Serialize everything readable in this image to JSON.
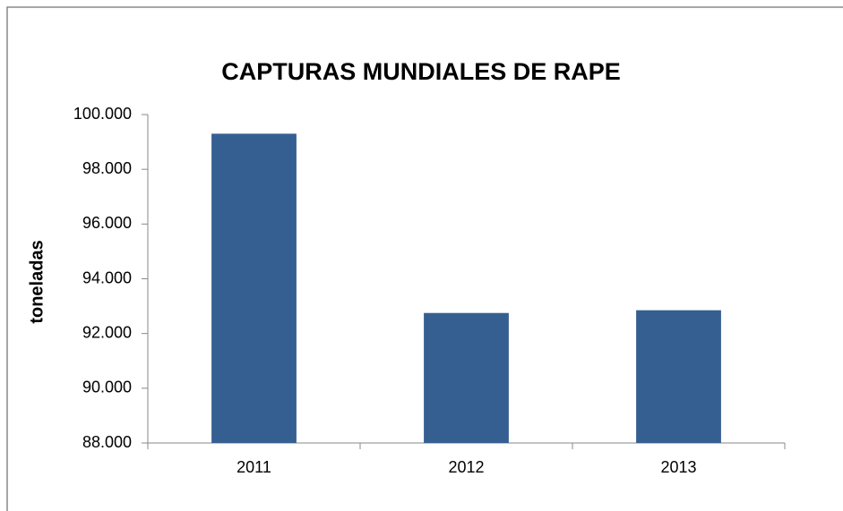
{
  "chart_data": {
    "type": "bar",
    "title": "CAPTURAS MUNDIALES DE RAPE",
    "y_label": "toneladas",
    "categories": [
      "2011",
      "2012",
      "2013"
    ],
    "values": [
      99300,
      92750,
      92850
    ],
    "color": "#365f91",
    "ylim": [
      88000,
      100000
    ],
    "yticks": [
      {
        "value": 88000,
        "label": "88.000"
      },
      {
        "value": 90000,
        "label": "90.000"
      },
      {
        "value": 92000,
        "label": "92.000"
      },
      {
        "value": 94000,
        "label": "94.000"
      },
      {
        "value": 96000,
        "label": "96.000"
      },
      {
        "value": 98000,
        "label": "98.000"
      },
      {
        "value": 100000,
        "label": "100.000"
      }
    ],
    "grid": false
  }
}
